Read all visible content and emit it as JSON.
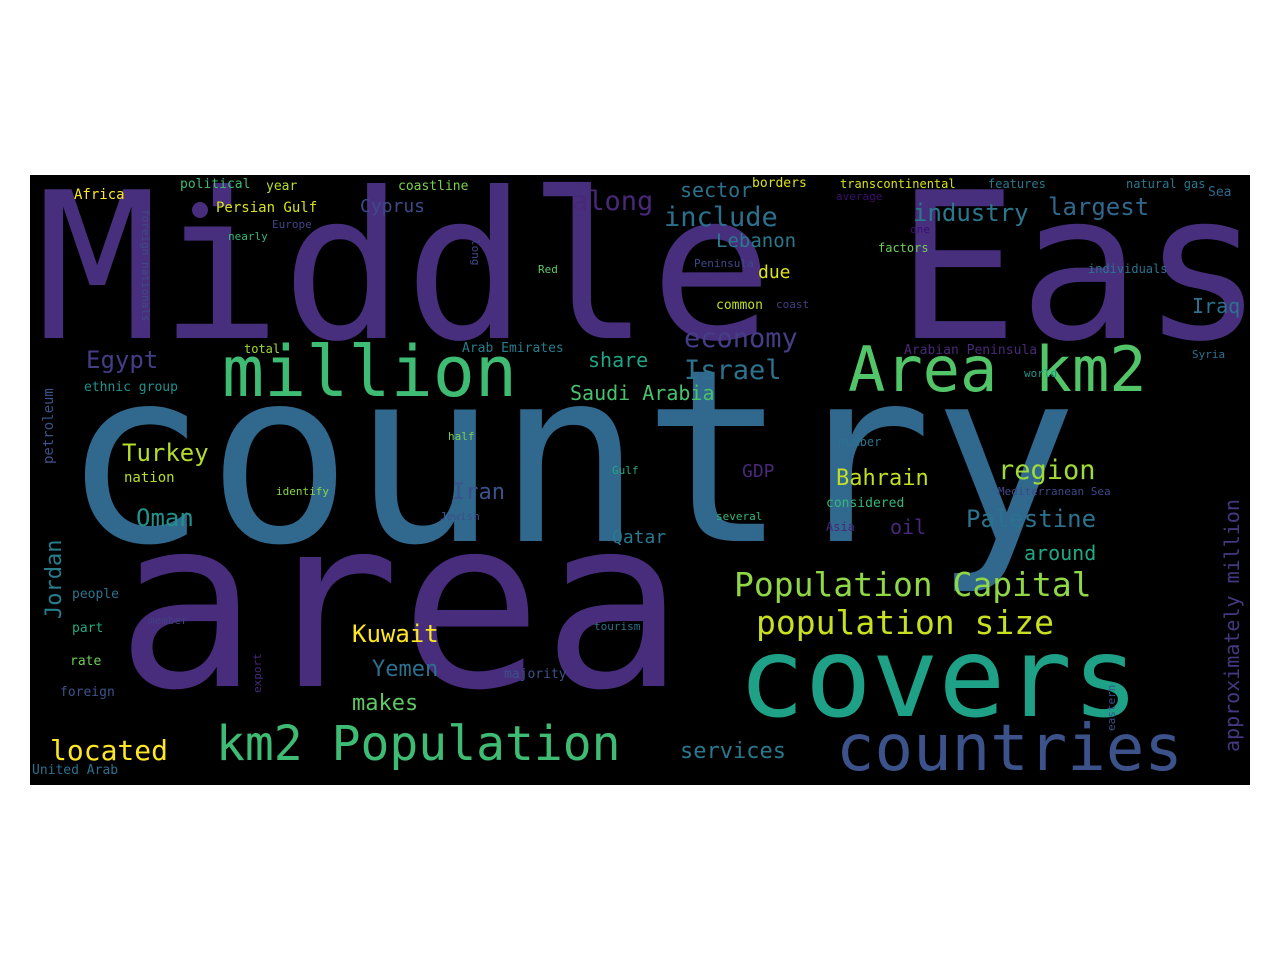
{
  "words": [
    {
      "text": "country",
      "color": "#31688e"
    },
    {
      "text": "Middle East",
      "color": "#472f7d"
    },
    {
      "text": "area",
      "color": "#472d7b"
    },
    {
      "text": "covers",
      "color": "#1fa187"
    },
    {
      "text": "million",
      "color": "#3fbc73"
    },
    {
      "text": "Area km2",
      "color": "#52c569"
    },
    {
      "text": "countries",
      "color": "#3b528b"
    },
    {
      "text": "km2 Population",
      "color": "#3fbc73"
    },
    {
      "text": "Population Capital",
      "color": "#8fd744"
    },
    {
      "text": "population size",
      "color": "#c8e020"
    },
    {
      "text": "approximately million",
      "color": "#453781"
    },
    {
      "text": "Palestine",
      "color": "#2c728e"
    },
    {
      "text": "include",
      "color": "#2d708e"
    },
    {
      "text": "along",
      "color": "#482878"
    },
    {
      "text": "economy",
      "color": "#433e85"
    },
    {
      "text": "Israel",
      "color": "#2c728e"
    },
    {
      "text": "Egypt",
      "color": "#433e85"
    },
    {
      "text": "Turkey",
      "color": "#b5de2b"
    },
    {
      "text": "Oman",
      "color": "#21918c"
    },
    {
      "text": "located",
      "color": "#fde725"
    },
    {
      "text": "Kuwait",
      "color": "#fde725"
    },
    {
      "text": "region",
      "color": "#a0da39"
    },
    {
      "text": "largest",
      "color": "#31688e"
    },
    {
      "text": "industry",
      "color": "#2a788e"
    },
    {
      "text": "Iran",
      "color": "#3b528b"
    },
    {
      "text": "Bahrain",
      "color": "#c2df23"
    },
    {
      "text": "Yemen",
      "color": "#2d708e"
    },
    {
      "text": "makes",
      "color": "#5ec962"
    },
    {
      "text": "services",
      "color": "#2a788e"
    },
    {
      "text": "Saudi Arabia",
      "color": "#4ac16d"
    },
    {
      "text": "Jordan",
      "color": "#287c8e"
    },
    {
      "text": "sector",
      "color": "#2c728e"
    },
    {
      "text": "Lebanon",
      "color": "#2a788e"
    },
    {
      "text": "Iraq",
      "color": "#2c728e"
    },
    {
      "text": "share",
      "color": "#20a486"
    },
    {
      "text": "Qatar",
      "color": "#2a788e"
    },
    {
      "text": "around",
      "color": "#22a884"
    },
    {
      "text": "oil",
      "color": "#482878"
    },
    {
      "text": "GDP",
      "color": "#482878"
    },
    {
      "text": "due",
      "color": "#dde318"
    },
    {
      "text": "Cyprus",
      "color": "#3e4989"
    },
    {
      "text": "Persian Gulf",
      "color": "#d8e219"
    },
    {
      "text": "Africa",
      "color": "#fde725"
    },
    {
      "text": "political",
      "color": "#3fbc73"
    },
    {
      "text": "year",
      "color": "#b5de2b"
    },
    {
      "text": "coastline",
      "color": "#7ad151"
    },
    {
      "text": "borders",
      "color": "#d8e219"
    },
    {
      "text": "transcontinental",
      "color": "#d8e219"
    },
    {
      "text": "features",
      "color": "#2a788e"
    },
    {
      "text": "natural gas",
      "color": "#2a788e"
    },
    {
      "text": "Sea",
      "color": "#31688e"
    },
    {
      "text": "average",
      "color": "#3b0f70"
    },
    {
      "text": "one",
      "color": "#3b0f70"
    },
    {
      "text": "Europe",
      "color": "#414487"
    },
    {
      "text": "nearly",
      "color": "#35b779"
    },
    {
      "text": "Red",
      "color": "#5ec962"
    },
    {
      "text": "Peninsula",
      "color": "#3e4989"
    },
    {
      "text": "factors",
      "color": "#6ece58"
    },
    {
      "text": "individuals",
      "color": "#2c728e"
    },
    {
      "text": "common",
      "color": "#bddf26"
    },
    {
      "text": "coast",
      "color": "#433e85"
    },
    {
      "text": "total",
      "color": "#a0da39"
    },
    {
      "text": "Arab Emirates",
      "color": "#287c8e"
    },
    {
      "text": "Arabian Peninsula",
      "color": "#482878"
    },
    {
      "text": "Syria",
      "color": "#2c728e"
    },
    {
      "text": "world",
      "color": "#1f988b"
    },
    {
      "text": "ethnic group",
      "color": "#21918c"
    },
    {
      "text": "half",
      "color": "#7ad151"
    },
    {
      "text": "number",
      "color": "#2c728e"
    },
    {
      "text": "Gulf",
      "color": "#22a884"
    },
    {
      "text": "nation",
      "color": "#b5de2b"
    },
    {
      "text": "identify",
      "color": "#86d549"
    },
    {
      "text": "Jewish",
      "color": "#3b528b"
    },
    {
      "text": "considered",
      "color": "#35b779"
    },
    {
      "text": "several",
      "color": "#35b779"
    },
    {
      "text": "Asia",
      "color": "#482878"
    },
    {
      "text": "Mediterranean Sea",
      "color": "#3e4989"
    },
    {
      "text": "people",
      "color": "#2c728e"
    },
    {
      "text": "part",
      "color": "#22a884"
    },
    {
      "text": "rate",
      "color": "#6ece58"
    },
    {
      "text": "foreign",
      "color": "#3b528b"
    },
    {
      "text": "member",
      "color": "#433e85"
    },
    {
      "text": "tourism",
      "color": "#2c728e"
    },
    {
      "text": "majority",
      "color": "#3b528b"
    },
    {
      "text": "United Arab",
      "color": "#2d708e"
    },
    {
      "text": "petroleum",
      "color": "#3b528b"
    },
    {
      "text": "foreign nationals",
      "color": "#3e4989"
    },
    {
      "text": "long",
      "color": "#3e4989"
    },
    {
      "text": "export",
      "color": "#482878"
    },
    {
      "text": "eastern",
      "color": "#3b528b"
    }
  ]
}
